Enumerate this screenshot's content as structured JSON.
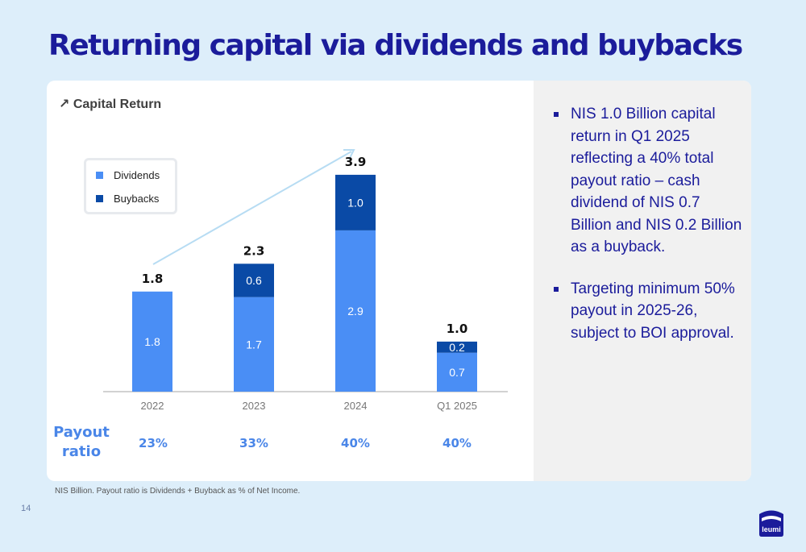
{
  "title": "Returning capital via dividends and buybacks",
  "chart_data": {
    "type": "bar",
    "stacked": true,
    "title": "↗ Capital Return",
    "categories": [
      "2022",
      "2023",
      "2024",
      "Q1 2025"
    ],
    "series": [
      {
        "name": "Dividends",
        "color": "#4a8ef5",
        "values": [
          1.8,
          1.7,
          2.9,
          0.7
        ],
        "labels": [
          "1.8",
          "1.7",
          "2.9",
          "0.7"
        ]
      },
      {
        "name": "Buybacks",
        "color": "#0a4aa6",
        "values": [
          0,
          0.6,
          1.0,
          0.2
        ],
        "labels": [
          "",
          "0.6",
          "1.0",
          "0.2"
        ]
      }
    ],
    "totals": [
      "1.8",
      "2.3",
      "3.9",
      "1.0"
    ],
    "ylim": [
      0,
      4.0
    ],
    "grid": false,
    "legend_position": "top-left",
    "trend_arrow": true
  },
  "payout": {
    "label_line1": "Payout",
    "label_line2": "ratio",
    "values": [
      "23%",
      "33%",
      "40%",
      "40%"
    ]
  },
  "bullets": [
    "NIS 1.0 Billion capital return in Q1 2025 reflecting a 40% total payout ratio – cash dividend of NIS 0.7 Billion and NIS 0.2 Billion as a buyback.",
    "Targeting minimum 50% payout in 2025-26, subject to BOI approval."
  ],
  "footnote": "NIS Billion. Payout ratio is Dividends + Buyback as % of Net Income.",
  "page_number": "14",
  "logo_text": "leumi"
}
